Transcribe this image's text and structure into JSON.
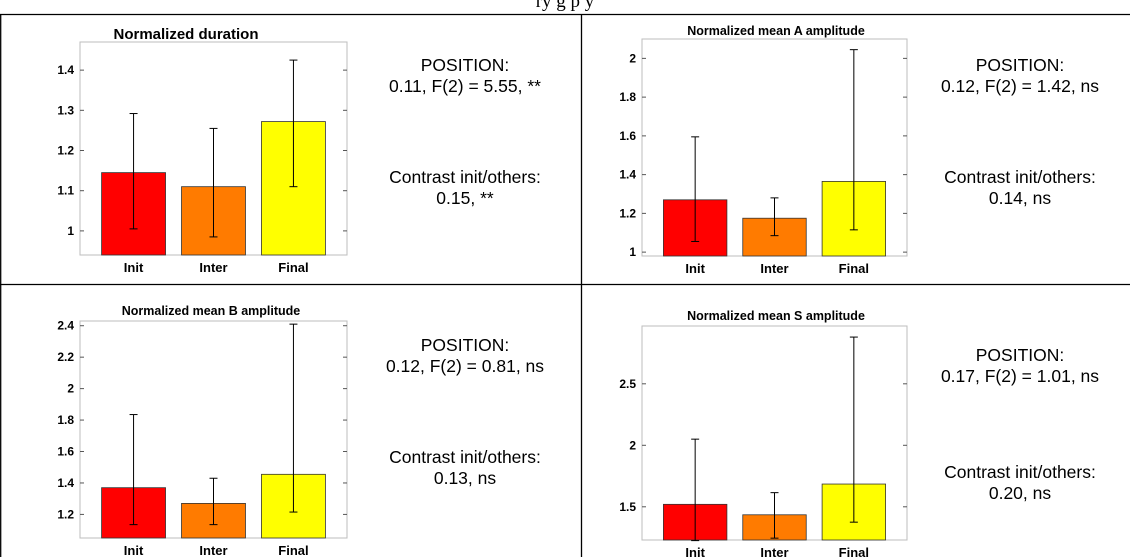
{
  "header_text": "ry                                                            g                             p                   y",
  "chart_data": [
    {
      "type": "bar",
      "title": "Normalized duration",
      "categories": [
        "Init",
        "Inter",
        "Final"
      ],
      "values": [
        1.145,
        1.11,
        1.272
      ],
      "error_low": [
        1.005,
        0.985,
        1.11
      ],
      "error_high": [
        1.292,
        1.255,
        1.425
      ],
      "ylim": [
        0.94,
        1.47
      ],
      "yticks": [
        1,
        1.1,
        1.2,
        1.3,
        1.4
      ],
      "ytick_labels": [
        "1",
        "1.1",
        "1.2",
        "1.3",
        "1.4"
      ],
      "colors": [
        "#ff0000",
        "#ff7b00",
        "#ffff00"
      ],
      "stats": {
        "position_label": "POSITION:",
        "position_value": "0.11, F(2) = 5.55, **",
        "contrast_label": "Contrast  init/others:",
        "contrast_value": "0.15, **"
      }
    },
    {
      "type": "bar",
      "title": "Normalized mean A amplitude",
      "categories": [
        "Init",
        "Inter",
        "Final"
      ],
      "values": [
        1.27,
        1.175,
        1.365
      ],
      "error_low": [
        1.055,
        1.085,
        1.115
      ],
      "error_high": [
        1.595,
        1.28,
        2.045
      ],
      "ylim": [
        0.98,
        2.1
      ],
      "yticks": [
        1,
        1.2,
        1.4,
        1.6,
        1.8,
        2
      ],
      "ytick_labels": [
        "1",
        "1.2",
        "1.4",
        "1.6",
        "1.8",
        "2"
      ],
      "colors": [
        "#ff0000",
        "#ff7b00",
        "#ffff00"
      ],
      "stats": {
        "position_label": "POSITION:",
        "position_value": "0.12, F(2) = 1.42, ns",
        "contrast_label": "Contrast  init/others:",
        "contrast_value": "0.14, ns"
      }
    },
    {
      "type": "bar",
      "title": "Normalized mean B amplitude",
      "categories": [
        "Init",
        "Inter",
        "Final"
      ],
      "values": [
        1.37,
        1.27,
        1.455
      ],
      "error_low": [
        1.135,
        1.135,
        1.215
      ],
      "error_high": [
        1.835,
        1.43,
        2.41
      ],
      "ylim": [
        1.05,
        2.43
      ],
      "yticks": [
        1.2,
        1.4,
        1.6,
        1.8,
        2,
        2.2,
        2.4
      ],
      "ytick_labels": [
        "1.2",
        "1.4",
        "1.6",
        "1.8",
        "2",
        "2.2",
        "2.4"
      ],
      "colors": [
        "#ff0000",
        "#ff7b00",
        "#ffff00"
      ],
      "stats": {
        "position_label": "POSITION:",
        "position_value": "0.12, F(2) = 0.81, ns",
        "contrast_label": "Contrast  init/others:",
        "contrast_value": "0.13, ns"
      }
    },
    {
      "type": "bar",
      "title": "Normalized mean S amplitude",
      "categories": [
        "Init",
        "Inter",
        "Final"
      ],
      "values": [
        1.52,
        1.435,
        1.685
      ],
      "error_low": [
        1.225,
        1.245,
        1.375
      ],
      "error_high": [
        2.05,
        1.615,
        2.88
      ],
      "ylim": [
        1.23,
        2.97
      ],
      "yticks": [
        1.5,
        2,
        2.5
      ],
      "ytick_labels": [
        "1.5",
        "2",
        "2.5"
      ],
      "colors": [
        "#ff0000",
        "#ff7b00",
        "#ffff00"
      ],
      "stats": {
        "position_label": "POSITION:",
        "position_value": "0.17, F(2) = 1.01, ns",
        "contrast_label": "Contrast  init/others:",
        "contrast_value": "0.20, ns"
      }
    }
  ]
}
